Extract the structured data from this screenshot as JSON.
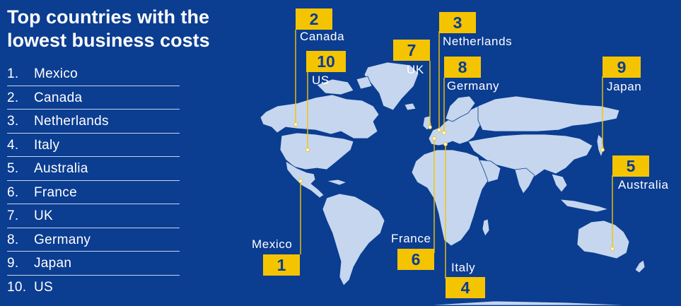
{
  "title_lines": [
    "Top countries with the",
    "lowest business costs"
  ],
  "ranking": [
    {
      "rank": "1.",
      "country": "Mexico"
    },
    {
      "rank": "2.",
      "country": "Canada"
    },
    {
      "rank": "3.",
      "country": "Netherlands"
    },
    {
      "rank": "4.",
      "country": "Italy"
    },
    {
      "rank": "5.",
      "country": "Australia"
    },
    {
      "rank": "6.",
      "country": "France"
    },
    {
      "rank": "7.",
      "country": "UK"
    },
    {
      "rank": "8.",
      "country": "Germany"
    },
    {
      "rank": "9.",
      "country": "Japan"
    },
    {
      "rank": "10.",
      "country": "US"
    }
  ],
  "markers": {
    "mexico": {
      "num": "1",
      "label": "Mexico"
    },
    "canada": {
      "num": "2",
      "label": "Canada"
    },
    "netherlands": {
      "num": "3",
      "label": "Netherlands"
    },
    "italy": {
      "num": "4",
      "label": "Italy"
    },
    "australia": {
      "num": "5",
      "label": "Australia"
    },
    "france": {
      "num": "6",
      "label": "France"
    },
    "uk": {
      "num": "7",
      "label": "UK"
    },
    "germany": {
      "num": "8",
      "label": "Germany"
    },
    "japan": {
      "num": "9",
      "label": "Japan"
    },
    "us": {
      "num": "10",
      "label": "US"
    }
  },
  "colors": {
    "background": "#0b3d91",
    "land": "#c5d6ee",
    "badge": "#f5c400",
    "leader": "#f5c400"
  }
}
